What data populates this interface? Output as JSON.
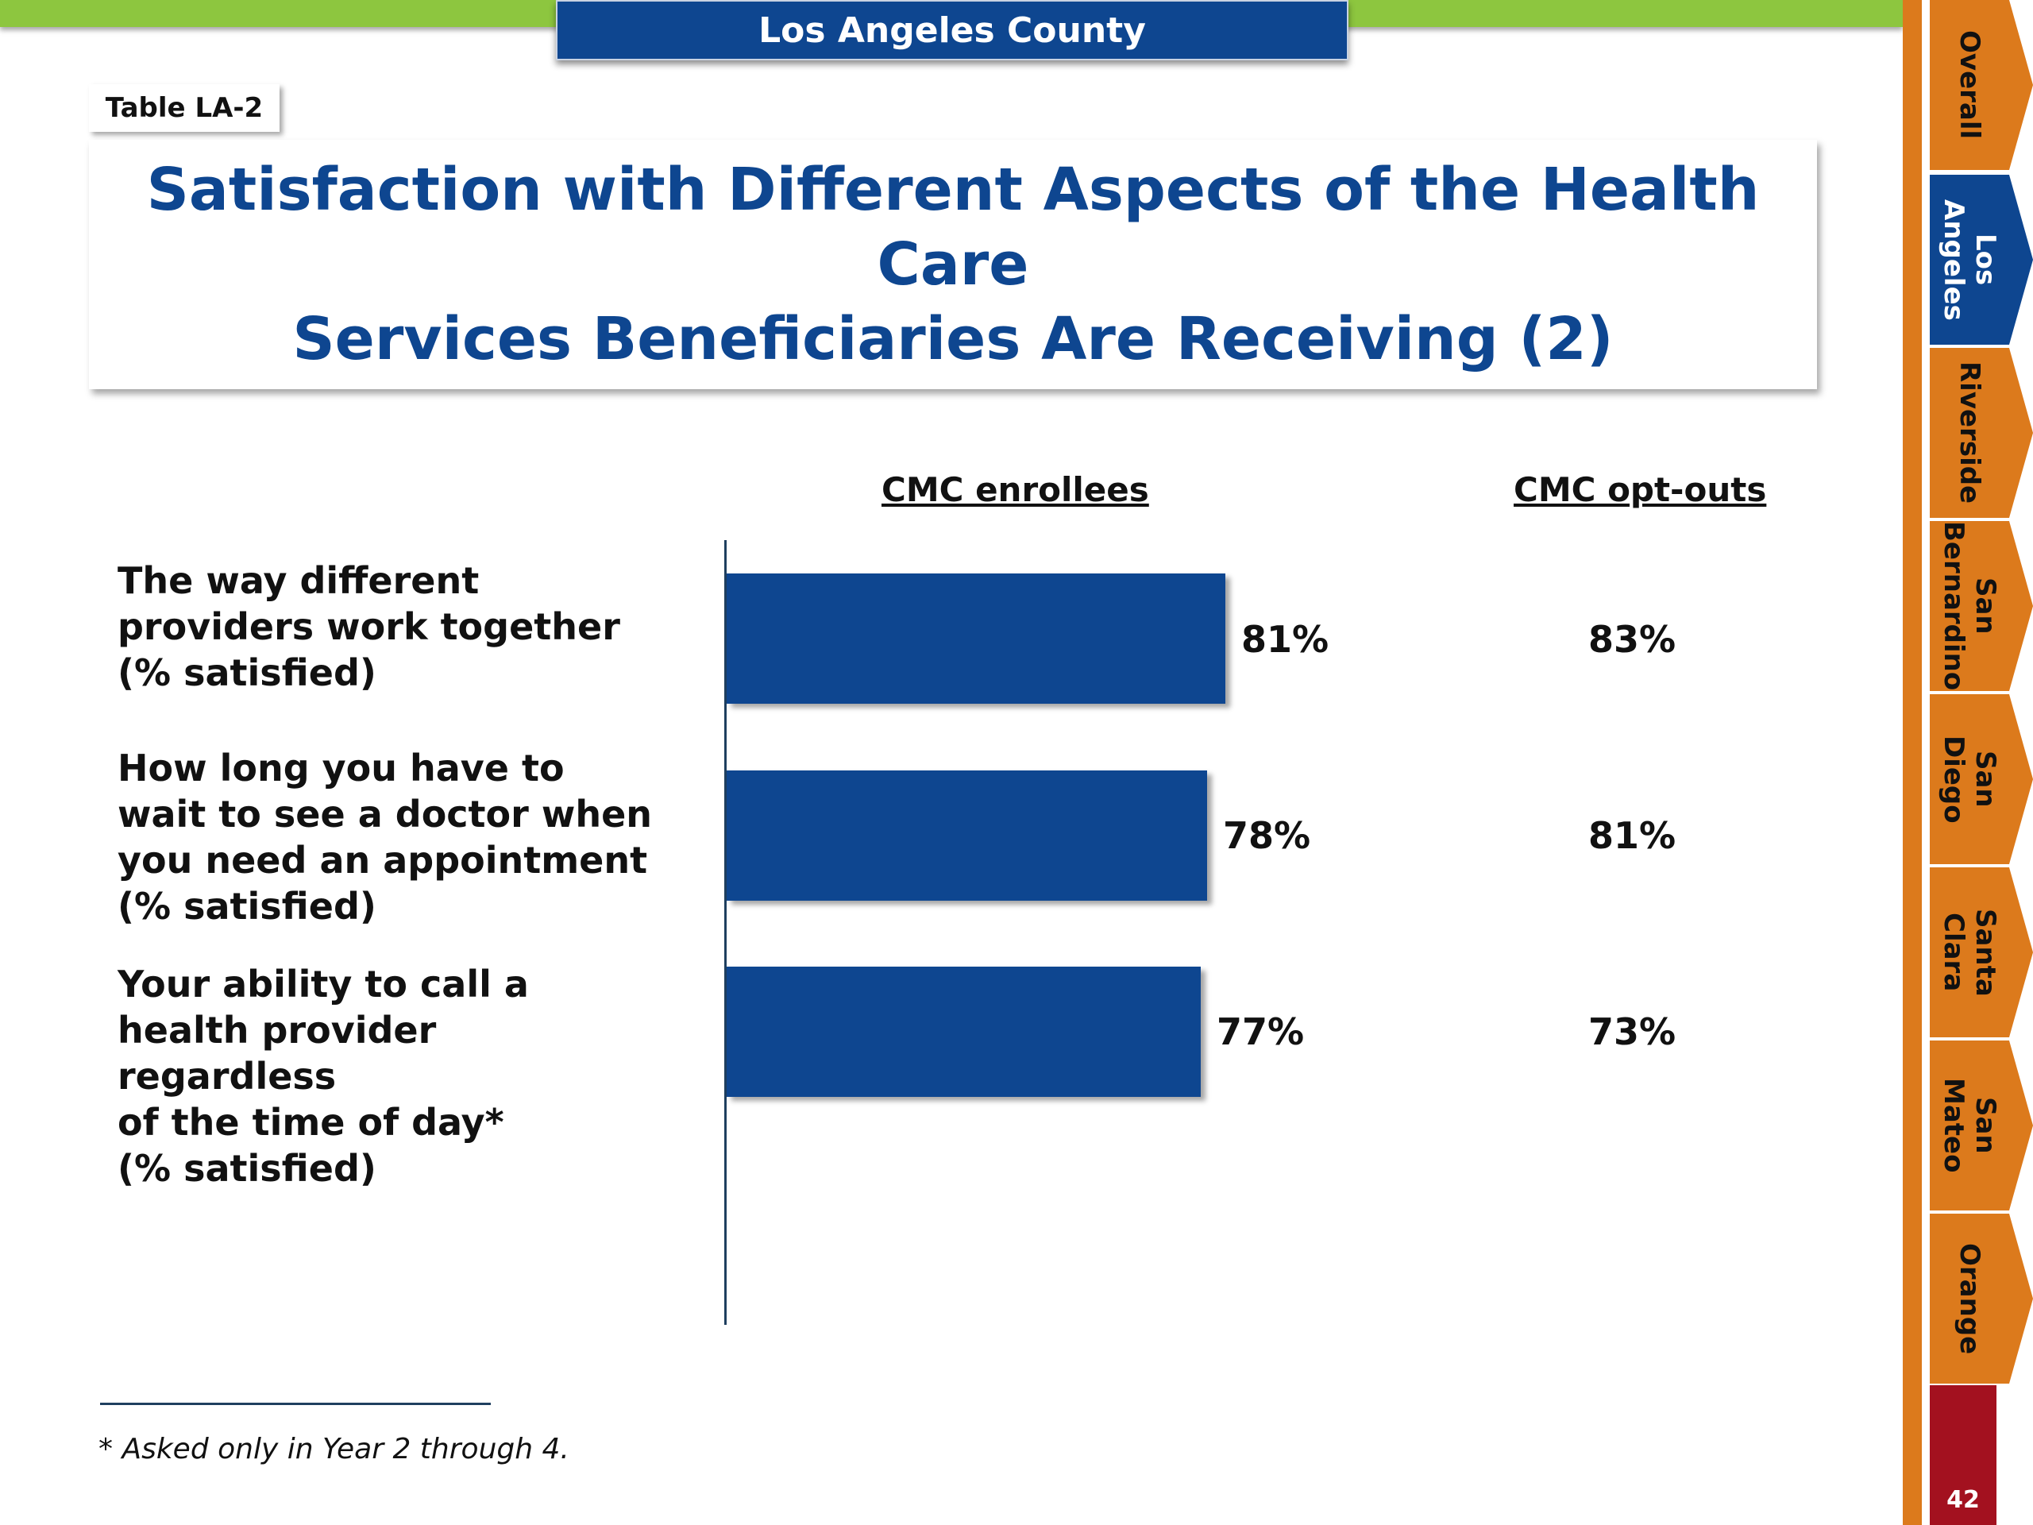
{
  "header": {
    "county": "Los Angeles County",
    "table_tag": "Table LA-2"
  },
  "title": "Satisfaction with Different Aspects of the Health Care Services Beneficiaries Are Receiving (2)",
  "title_lines": [
    "Satisfaction with Different Aspects of the Health Care",
    "Services Beneficiaries Are Receiving (2)"
  ],
  "columns": {
    "enrollees": "CMC enrollees",
    "optouts": "CMC opt-outs"
  },
  "rows": [
    {
      "label": "The way different\nproviders work together\n(% satisfied)",
      "enrollees": "81%",
      "optouts": "83%"
    },
    {
      "label": "How long you have to\nwait to see a doctor when\nyou need an appointment\n(% satisfied)",
      "enrollees": "78%",
      "optouts": "81%"
    },
    {
      "label": "Your ability to call a\nhealth provider regardless\nof the time of day*\n(% satisfied)",
      "enrollees": "77%",
      "optouts": "73%"
    }
  ],
  "chart_data": {
    "type": "bar",
    "orientation": "horizontal",
    "categories": [
      "The way different providers work together (% satisfied)",
      "How long you have to wait to see a doctor when you need an appointment (% satisfied)",
      "Your ability to call a health provider regardless of the time of day* (% satisfied)"
    ],
    "series": [
      {
        "name": "CMC enrollees",
        "values": [
          81,
          78,
          77
        ]
      },
      {
        "name": "CMC opt-outs",
        "values": [
          83,
          81,
          73
        ],
        "displayed_as": "text column"
      }
    ],
    "xlim": [
      0,
      100
    ],
    "grid": false,
    "legend": "none"
  },
  "footnote": "* Asked only in Year 2 through 4.",
  "sidebar": {
    "tabs": [
      {
        "label": "Overall",
        "active": false
      },
      {
        "label": "Los\nAngeles",
        "active": true
      },
      {
        "label": "Riverside",
        "active": false
      },
      {
        "label": "San\nBernardino",
        "active": false
      },
      {
        "label": "San\nDiego",
        "active": false
      },
      {
        "label": "Santa\nClara",
        "active": false
      },
      {
        "label": "San\nMateo",
        "active": false
      },
      {
        "label": "Orange",
        "active": false
      }
    ],
    "page_number": "42"
  },
  "colors": {
    "bar": "#0e4690",
    "title": "#0e4690",
    "tab": "#dc7a1c",
    "tab_active": "#0e4690",
    "page_box": "#a3111f",
    "top_bar": "#8dc63f"
  }
}
